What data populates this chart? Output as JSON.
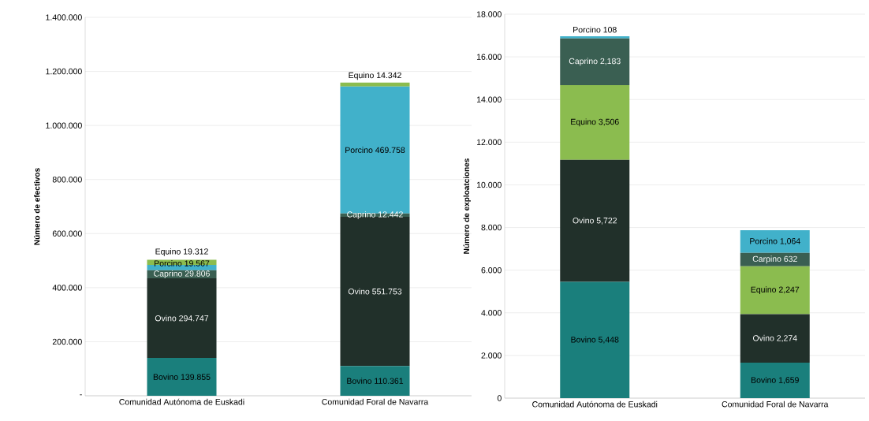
{
  "chart_data": [
    {
      "type": "bar",
      "stacked": true,
      "ylabel": "Número de efectivos",
      "categories": [
        "Comunidad Autónoma de Euskadi",
        "Comunidad Foral de Navarra"
      ],
      "ylim": [
        0,
        1400000
      ],
      "grid": "y",
      "yticks": [
        {
          "value": 0,
          "label": "-"
        },
        {
          "value": 200000,
          "label": "200.000"
        },
        {
          "value": 400000,
          "label": "400.000"
        },
        {
          "value": 600000,
          "label": "600.000"
        },
        {
          "value": 800000,
          "label": "800.000"
        },
        {
          "value": 1000000,
          "label": "1.000.000"
        },
        {
          "value": 1200000,
          "label": "1.200.000"
        },
        {
          "value": 1400000,
          "label": "1.400.000"
        }
      ],
      "series": [
        {
          "color": "#1a7f7c",
          "values": [
            139855,
            110361
          ],
          "value_labels": [
            "Bovino 139.855",
            "Bovino 110.361"
          ]
        },
        {
          "color": "#21302a",
          "values": [
            294747,
            551753
          ],
          "value_labels": [
            "Ovino 294.747",
            "Ovino 551.753"
          ]
        },
        {
          "color": "#3a5f52",
          "values": [
            29806,
            12442
          ],
          "value_labels": [
            "Caprino 29.806",
            "Caprino 12.442"
          ]
        },
        {
          "color": "#41b1ca",
          "values": [
            19567,
            469758
          ],
          "value_labels": [
            "Porcino 19.567",
            "Porcino 469.758"
          ]
        },
        {
          "color": "#8bbc4f",
          "values": [
            19312,
            14342
          ],
          "value_labels": [
            "Equino 19.312",
            "Equino 14.342"
          ]
        }
      ]
    },
    {
      "type": "bar",
      "stacked": true,
      "ylabel": "Número de exploatciones",
      "categories": [
        "Comunidad Autónoma de Euskadi",
        "Comunidad Foral de Navarra"
      ],
      "ylim": [
        0,
        18000
      ],
      "grid": "y",
      "yticks": [
        0,
        {
          "value": 2000,
          "label": "2.000"
        },
        {
          "value": 4000,
          "label": "4.000"
        },
        {
          "value": 6000,
          "label": "6.000"
        },
        {
          "value": 8000,
          "label": "8.000"
        },
        {
          "value": 10000,
          "label": "10.000"
        },
        {
          "value": 12000,
          "label": "12.000"
        },
        {
          "value": 14000,
          "label": "14.000"
        },
        {
          "value": 16000,
          "label": "16.000"
        },
        {
          "value": 18000,
          "label": "18.000"
        }
      ],
      "series": [
        {
          "color": "#1a7f7c",
          "values": [
            5448,
            1659
          ],
          "value_labels": [
            "Bovino 5,448",
            "Bovino 1,659"
          ]
        },
        {
          "color": "#21302a",
          "values": [
            5722,
            2274
          ],
          "value_labels": [
            "Ovino 5,722",
            "Ovino 2,274"
          ]
        },
        {
          "color": "#8bbc4f",
          "values": [
            3506,
            2247
          ],
          "value_labels": [
            "Equino 3,506",
            "Equino 2,247"
          ]
        },
        {
          "color": "#3a5f52",
          "values": [
            2183,
            632
          ],
          "value_labels": [
            "Caprino 2,183",
            "Carpino 632"
          ]
        },
        {
          "color": "#41b1ca",
          "values": [
            108,
            1064
          ],
          "value_labels": [
            "Porcino 108",
            "Porcino 1,064"
          ]
        }
      ]
    }
  ]
}
